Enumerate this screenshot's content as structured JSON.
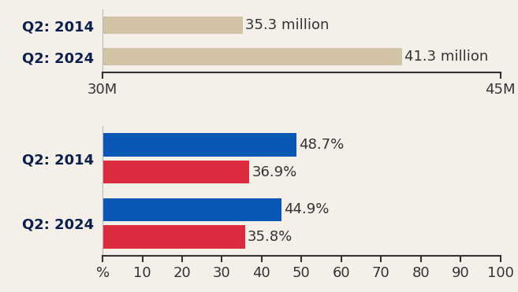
{
  "chart_data": [
    {
      "type": "bar",
      "orientation": "horizontal",
      "categories": [
        "Q2: 2014",
        "Q2: 2024"
      ],
      "values": [
        35.3,
        41.3
      ],
      "value_labels": [
        "35.3 million",
        "41.3 million"
      ],
      "color": "#d2c2a6",
      "xlim": [
        30,
        45
      ],
      "xticks": [
        {
          "value": 30,
          "label": "30M"
        },
        {
          "value": 45,
          "label": "45M"
        }
      ],
      "data_labels": true
    },
    {
      "type": "bar",
      "orientation": "horizontal",
      "categories": [
        "Q2: 2014",
        "Q2: 2024"
      ],
      "series": [
        {
          "color": "#0a57b5",
          "values": [
            48.7,
            44.9
          ],
          "value_labels": [
            "48.7%",
            "44.9%"
          ]
        },
        {
          "color": "#dc2a3f",
          "values": [
            36.9,
            35.8
          ],
          "value_labels": [
            "36.9%",
            "35.8%"
          ]
        }
      ],
      "xlim": [
        0,
        100
      ],
      "xticks": [
        {
          "value": 0,
          "label": "%"
        },
        10,
        20,
        30,
        40,
        50,
        60,
        70,
        80,
        90,
        100
      ],
      "data_labels": true
    }
  ]
}
